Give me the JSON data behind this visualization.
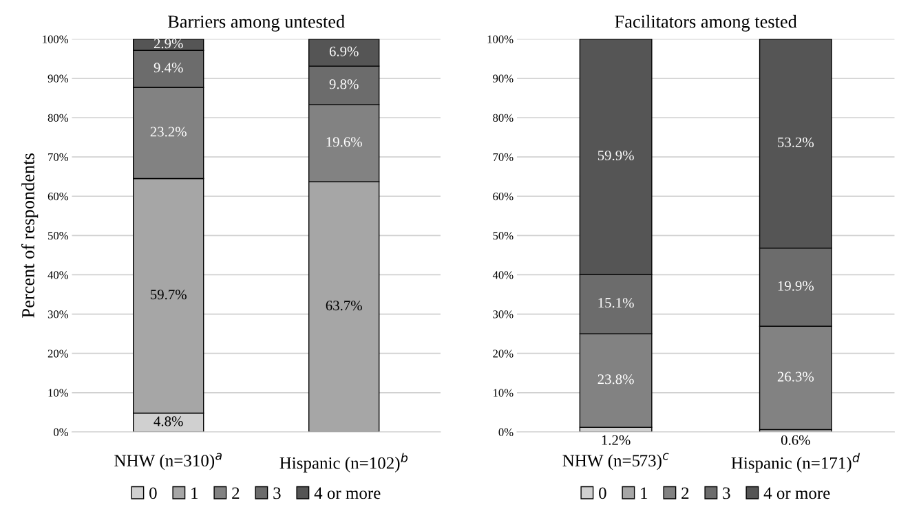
{
  "chart_data": [
    {
      "type": "bar",
      "title": "Barriers among untested",
      "ylabel": "Percent of respondents",
      "stacked": true,
      "categories": [
        "NHW (n=310)$^{a}$",
        "Hispanic (n=102)$^{b}$"
      ],
      "ylim": [
        0,
        100
      ],
      "yticks": [
        {
          "value": 0,
          "label": "0%"
        },
        {
          "value": 10,
          "label": "10%"
        },
        {
          "value": 20,
          "label": "20%"
        },
        {
          "value": 30,
          "label": "30%"
        },
        {
          "value": 40,
          "label": "40%"
        },
        {
          "value": 50,
          "label": "50%"
        },
        {
          "value": 60,
          "label": "60%"
        },
        {
          "value": 70,
          "label": "70%"
        },
        {
          "value": 80,
          "label": "80%"
        },
        {
          "value": 90,
          "label": "90%"
        },
        {
          "value": 100,
          "label": "100%"
        }
      ],
      "grid": "y",
      "legend": "bottom",
      "series": [
        {
          "name": "0",
          "color": "#d0d0d0",
          "values": [
            4.8,
            null
          ],
          "value_labels": [
            "4.8%",
            null
          ]
        },
        {
          "name": "1",
          "color": "#a6a6a6",
          "values": [
            59.7,
            63.7
          ],
          "value_labels": [
            "59.7%",
            "63.7%"
          ]
        },
        {
          "name": "2",
          "color": "#828282",
          "values": [
            23.2,
            19.6
          ],
          "value_labels": [
            "23.2%",
            "19.6%"
          ]
        },
        {
          "name": "3",
          "color": "#6c6c6c",
          "values": [
            9.4,
            9.8
          ],
          "value_labels": [
            "9.4%",
            "9.8%"
          ]
        },
        {
          "name": "4 or more",
          "color": "#555555",
          "values": [
            2.9,
            6.9
          ],
          "value_labels": [
            "2.9%",
            "6.9%"
          ]
        }
      ]
    },
    {
      "type": "bar",
      "title": "Facilitators among tested",
      "stacked": true,
      "categories": [
        "NHW (n=573)$^{c}$",
        "Hispanic (n=171)$^{d}$"
      ],
      "ylim": [
        0,
        100
      ],
      "yticks": [
        {
          "value": 0,
          "label": "0%"
        },
        {
          "value": 10,
          "label": "10%"
        },
        {
          "value": 20,
          "label": "20%"
        },
        {
          "value": 30,
          "label": "30%"
        },
        {
          "value": 40,
          "label": "40%"
        },
        {
          "value": 50,
          "label": "50%"
        },
        {
          "value": 60,
          "label": "60%"
        },
        {
          "value": 70,
          "label": "70%"
        },
        {
          "value": 80,
          "label": "80%"
        },
        {
          "value": 90,
          "label": "90%"
        },
        {
          "value": 100,
          "label": "100%"
        }
      ],
      "grid": "y",
      "legend": "bottom",
      "series": [
        {
          "name": "0",
          "color": "#d0d0d0",
          "values": [
            1.2,
            0.6
          ],
          "value_labels": [
            "1.2%",
            "0.6%"
          ]
        },
        {
          "name": "1",
          "color": "#a6a6a6",
          "values": [
            null,
            null
          ],
          "value_labels": [
            null,
            null
          ]
        },
        {
          "name": "2",
          "color": "#828282",
          "values": [
            23.8,
            26.3
          ],
          "value_labels": [
            "23.8%",
            "26.3%"
          ]
        },
        {
          "name": "3",
          "color": "#6c6c6c",
          "values": [
            15.1,
            19.9
          ],
          "value_labels": [
            "15.1%",
            "19.9%"
          ]
        },
        {
          "name": "4 or more",
          "color": "#555555",
          "values": [
            59.9,
            53.2
          ],
          "value_labels": [
            "59.9%",
            "53.2%"
          ]
        }
      ]
    }
  ]
}
